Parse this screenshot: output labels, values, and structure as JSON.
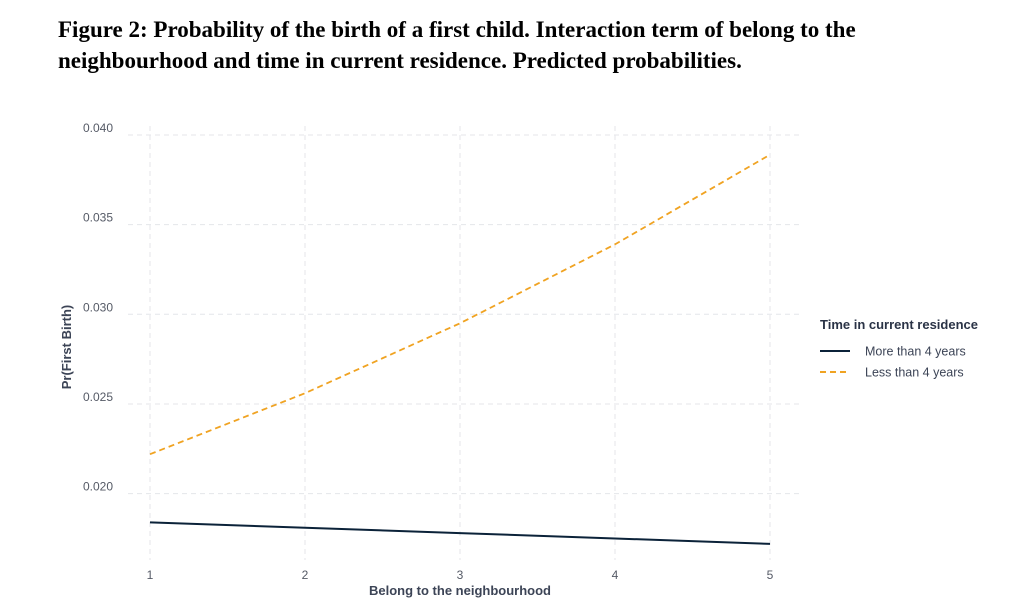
{
  "figure_caption": "Figure 2: Probability of the birth of a first child. Interaction term of belong to the neighbourhood and time in current residence. Predicted probabilities.",
  "chart_data": {
    "type": "line",
    "title": "",
    "xlabel": "Belong to the neighbourhood",
    "ylabel": "Pr(First Birth)",
    "x": [
      1,
      2,
      3,
      4,
      5
    ],
    "xticks": [
      "1",
      "2",
      "3",
      "4",
      "5"
    ],
    "yticks": [
      "0.020",
      "0.025",
      "0.030",
      "0.035",
      "0.040"
    ],
    "xlim": [
      1,
      5
    ],
    "ylim": [
      0.0163,
      0.0405
    ],
    "grid": true,
    "legend": {
      "title": "Time in current residence",
      "placement": "right"
    },
    "series": [
      {
        "name": "More than 4 years",
        "values": [
          0.0184,
          0.0181,
          0.0178,
          0.0175,
          0.0172
        ],
        "color": "#0b2239",
        "dash": "solid"
      },
      {
        "name": "Less than 4 years",
        "values": [
          0.0222,
          0.0256,
          0.0295,
          0.0339,
          0.0389
        ],
        "color": "#f0a322",
        "dash": "dashed"
      }
    ]
  }
}
